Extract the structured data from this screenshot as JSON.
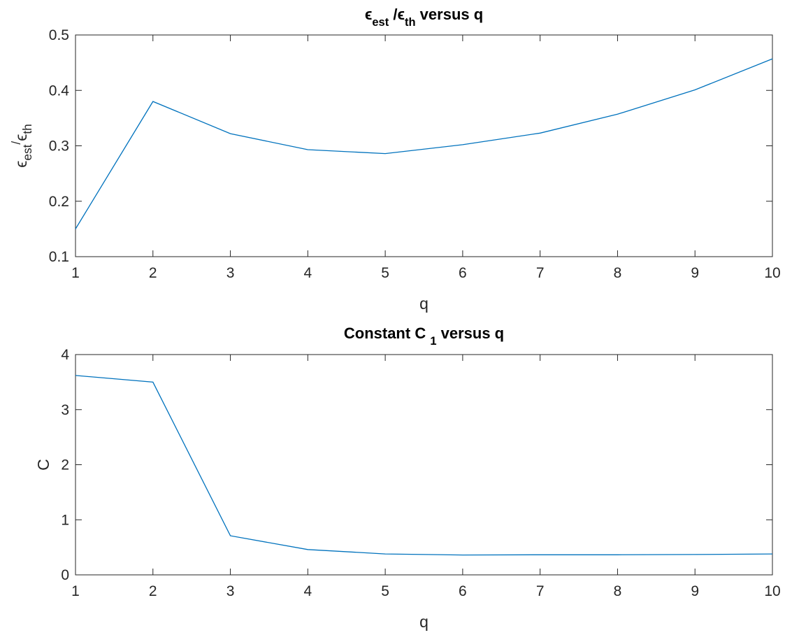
{
  "colors": {
    "series": "#0072bd",
    "axis": "#262626",
    "background": "#ffffff"
  },
  "chart_data": [
    {
      "type": "line",
      "title_parts": [
        {
          "text": "ϵ",
          "style": "normal"
        },
        {
          "text": "est",
          "style": "sub"
        },
        {
          "text": " /",
          "style": "normal"
        },
        {
          "text": "ϵ",
          "style": "normal"
        },
        {
          "text": "th",
          "style": "sub"
        },
        {
          "text": "  versus q",
          "style": "normal"
        }
      ],
      "xlabel": "q",
      "ylabel_parts": [
        {
          "text": "ϵ",
          "style": "normal"
        },
        {
          "text": "est",
          "style": "sub"
        },
        {
          "text": "/",
          "style": "sup"
        },
        {
          "text": "ϵ",
          "style": "normal"
        },
        {
          "text": "th",
          "style": "sub"
        }
      ],
      "xlim": [
        1,
        10
      ],
      "ylim": [
        0.1,
        0.5
      ],
      "xticks": [
        "1",
        "2",
        "3",
        "4",
        "5",
        "6",
        "7",
        "8",
        "9",
        "10"
      ],
      "yticks": [
        "0.1",
        "0.2",
        "0.3",
        "0.4",
        "0.5"
      ],
      "grid": false,
      "series": [
        {
          "x": [
            1,
            2,
            3,
            4,
            5,
            6,
            7,
            8,
            9,
            10
          ],
          "y": [
            0.15,
            0.38,
            0.322,
            0.293,
            0.286,
            0.302,
            0.323,
            0.357,
            0.401,
            0.457
          ]
        }
      ]
    },
    {
      "type": "line",
      "title_parts": [
        {
          "text": "Constant C ",
          "style": "normal"
        },
        {
          "text": "1",
          "style": "sub"
        },
        {
          "text": "  versus q",
          "style": "normal"
        }
      ],
      "xlabel": "q",
      "ylabel_parts": [
        {
          "text": "C",
          "style": "normal"
        }
      ],
      "xlim": [
        1,
        10
      ],
      "ylim": [
        0,
        4
      ],
      "xticks": [
        "1",
        "2",
        "3",
        "4",
        "5",
        "6",
        "7",
        "8",
        "9",
        "10"
      ],
      "yticks": [
        "0",
        "1",
        "2",
        "3",
        "4"
      ],
      "grid": false,
      "series": [
        {
          "x": [
            1,
            2,
            3,
            4,
            5,
            6,
            7,
            8,
            9,
            10
          ],
          "y": [
            3.62,
            3.5,
            0.71,
            0.46,
            0.38,
            0.36,
            0.365,
            0.365,
            0.37,
            0.38
          ]
        }
      ]
    }
  ]
}
